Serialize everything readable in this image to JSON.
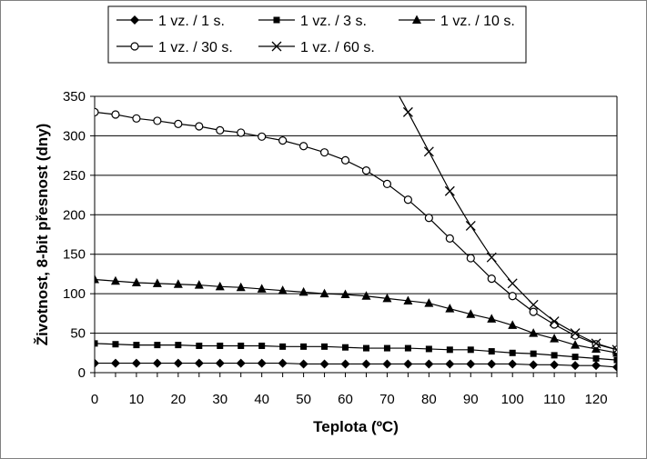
{
  "chart_data": {
    "type": "line",
    "xlabel": "Teplota (ºC)",
    "ylabel": "Životnost, 8-bit přesnost (dny)",
    "xlim": [
      0,
      125
    ],
    "ylim": [
      0,
      350
    ],
    "xticks": [
      0,
      10,
      20,
      30,
      40,
      50,
      60,
      70,
      80,
      90,
      100,
      110,
      120
    ],
    "yticks": [
      0,
      50,
      100,
      150,
      200,
      250,
      300,
      350
    ],
    "grid": "horizontal",
    "legend_position": "top",
    "series": [
      {
        "name": "1 vz. / 1 s.",
        "marker": "diamond-filled",
        "x": [
          0,
          5,
          10,
          15,
          20,
          25,
          30,
          35,
          40,
          45,
          50,
          55,
          60,
          65,
          70,
          75,
          80,
          85,
          90,
          95,
          100,
          105,
          110,
          115,
          120,
          125
        ],
        "values": [
          12,
          12,
          12,
          12,
          12,
          12,
          12,
          12,
          12,
          12,
          11,
          11,
          11,
          11,
          11,
          11,
          11,
          11,
          11,
          11,
          11,
          10,
          10,
          9,
          9,
          7
        ]
      },
      {
        "name": "1 vz. / 3 s.",
        "marker": "square-filled",
        "x": [
          0,
          5,
          10,
          15,
          20,
          25,
          30,
          35,
          40,
          45,
          50,
          55,
          60,
          65,
          70,
          75,
          80,
          85,
          90,
          95,
          100,
          105,
          110,
          115,
          120,
          125
        ],
        "values": [
          37,
          36,
          35,
          35,
          35,
          34,
          34,
          34,
          34,
          33,
          33,
          33,
          32,
          31,
          31,
          31,
          30,
          29,
          29,
          27,
          25,
          24,
          22,
          20,
          18,
          16
        ]
      },
      {
        "name": "1 vz. / 10 s.",
        "marker": "triangle-filled",
        "x": [
          0,
          5,
          10,
          15,
          20,
          25,
          30,
          35,
          40,
          45,
          50,
          55,
          60,
          65,
          70,
          75,
          80,
          85,
          90,
          95,
          100,
          105,
          110,
          115,
          120,
          125
        ],
        "values": [
          118,
          116,
          114,
          113,
          112,
          111,
          109,
          108,
          106,
          104,
          102,
          100,
          99,
          97,
          94,
          91,
          88,
          81,
          74,
          68,
          60,
          50,
          43,
          35,
          30,
          25
        ]
      },
      {
        "name": "1 vz. / 30 s.",
        "marker": "circle-open",
        "x": [
          0,
          5,
          10,
          15,
          20,
          25,
          30,
          35,
          40,
          45,
          50,
          55,
          60,
          65,
          70,
          75,
          80,
          85,
          90,
          95,
          100,
          105,
          110,
          115,
          120,
          125
        ],
        "values": [
          330,
          327,
          322,
          319,
          315,
          312,
          307,
          304,
          299,
          294,
          287,
          279,
          269,
          256,
          239,
          219,
          196,
          170,
          145,
          119,
          97,
          77,
          61,
          47,
          36,
          29
        ]
      },
      {
        "name": "1 vz. / 60 s.",
        "marker": "x",
        "x": [
          75,
          80,
          85,
          90,
          95,
          100,
          105,
          110,
          115,
          120,
          125
        ],
        "values": [
          330,
          280,
          230,
          186,
          146,
          113,
          86,
          65,
          50,
          37,
          29
        ],
        "line_extends_from": [
          71,
          368
        ]
      }
    ]
  }
}
